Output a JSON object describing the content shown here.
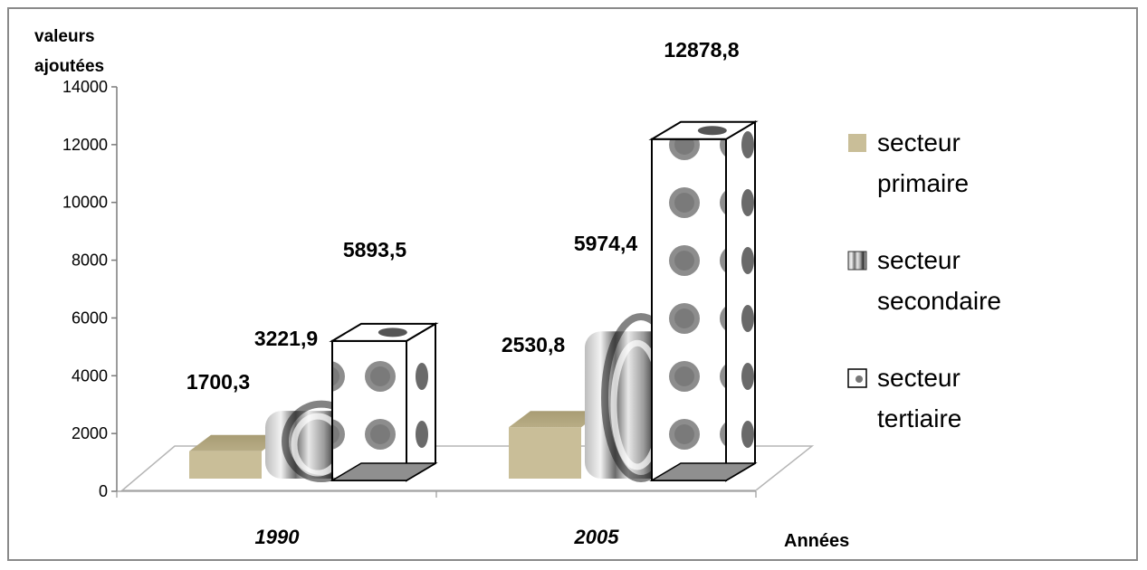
{
  "chart_data": {
    "type": "bar",
    "title": "",
    "ylabel": "valeurs ajoutées",
    "ylabel_lines": [
      "valeurs",
      "ajoutées"
    ],
    "xlabel": "Années",
    "categories": [
      "1990",
      "2005"
    ],
    "ylim": [
      0,
      14000
    ],
    "yticks": [
      0,
      2000,
      4000,
      6000,
      8000,
      10000,
      12000,
      14000
    ],
    "series": [
      {
        "name": "secteur primaire",
        "name_lines": [
          "secteur",
          "primaire"
        ],
        "values": [
          1700.3,
          2530.8
        ],
        "labels": [
          "1700,3",
          "2530,8"
        ],
        "color": "#c9be98"
      },
      {
        "name": "secteur secondaire",
        "name_lines": [
          "secteur",
          "secondaire"
        ],
        "values": [
          3221.9,
          5974.4
        ],
        "labels": [
          "3221,9",
          "5974,4"
        ],
        "color": "#7a7a7a"
      },
      {
        "name": "secteur tertiaire",
        "name_lines": [
          "secteur",
          "tertiaire"
        ],
        "values": [
          5893.5,
          12878.8
        ],
        "labels": [
          "5893,5",
          "12878,8"
        ],
        "color": "#ffffff"
      }
    ],
    "legend": "right",
    "grid": false,
    "style": "3d-column"
  }
}
